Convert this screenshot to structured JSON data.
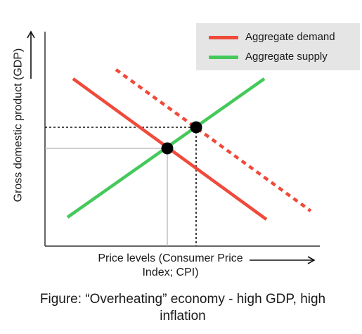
{
  "legend": {
    "demand_label": "Aggregate demand",
    "supply_label": "Aggregate supply"
  },
  "axes": {
    "y_label": "Gross domestic product (GDP)",
    "x_label": "Price levels (Consumer Price Index; CPI)"
  },
  "caption": "Figure: “Overheating” economy - high GDP, high inflation",
  "colors": {
    "demand": "#f04a3a",
    "supply": "#44c95a",
    "axis": "#333333",
    "guide": "#b0b0b0",
    "point": "#000000"
  }
}
